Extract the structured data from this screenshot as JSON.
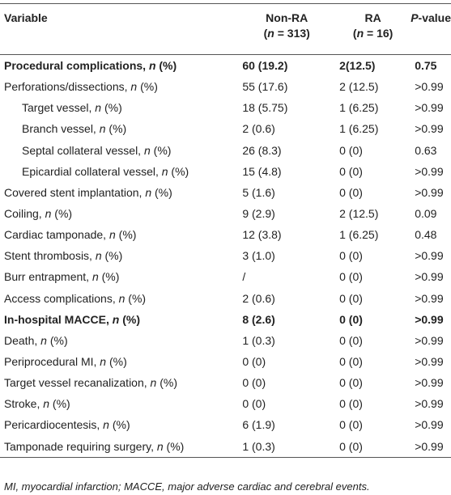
{
  "header": {
    "variable": "Variable",
    "non_ra": {
      "name": "Non-RA",
      "n": "(n = 313)"
    },
    "ra": {
      "name": "RA",
      "n": "(n = 16)"
    },
    "p_value": "P-value"
  },
  "rows": [
    {
      "label": "Procedural complications, n (%)",
      "non_ra": "60 (19.2)",
      "ra": "2(12.5)",
      "p": "0.75",
      "bold": true
    },
    {
      "label": "Perforations/dissections, n (%)",
      "non_ra": "55 (17.6)",
      "ra": "2 (12.5)",
      "p": ">0.99"
    },
    {
      "label": "Target vessel, n (%)",
      "non_ra": "18 (5.75)",
      "ra": "1 (6.25)",
      "p": ">0.99",
      "indent": true
    },
    {
      "label": "Branch vessel, n (%)",
      "non_ra": "2 (0.6)",
      "ra": "1 (6.25)",
      "p": ">0.99",
      "indent": true
    },
    {
      "label": "Septal collateral vessel, n (%)",
      "non_ra": "26 (8.3)",
      "ra": "0 (0)",
      "p": "0.63",
      "indent": true
    },
    {
      "label": "Epicardial collateral vessel, n (%)",
      "non_ra": "15 (4.8)",
      "ra": "0 (0)",
      "p": ">0.99",
      "indent": true
    },
    {
      "label": "Covered stent implantation, n (%)",
      "non_ra": "5 (1.6)",
      "ra": "0 (0)",
      "p": ">0.99"
    },
    {
      "label": "Coiling, n (%)",
      "non_ra": "9 (2.9)",
      "ra": "2 (12.5)",
      "p": "0.09"
    },
    {
      "label": "Cardiac tamponade, n (%)",
      "non_ra": "12 (3.8)",
      "ra": "1 (6.25)",
      "p": "0.48"
    },
    {
      "label": "Stent thrombosis, n (%)",
      "non_ra": "3 (1.0)",
      "ra": "0 (0)",
      "p": ">0.99"
    },
    {
      "label": "Burr entrapment, n (%)",
      "non_ra": "/",
      "ra": "0 (0)",
      "p": ">0.99"
    },
    {
      "label": "Access complications, n (%)",
      "non_ra": "2 (0.6)",
      "ra": "0 (0)",
      "p": ">0.99"
    },
    {
      "label": "In-hospital MACCE, n (%)",
      "non_ra": "8 (2.6)",
      "ra": "0 (0)",
      "p": ">0.99",
      "bold": true
    },
    {
      "label": "Death, n (%)",
      "non_ra": "1 (0.3)",
      "ra": "0 (0)",
      "p": ">0.99"
    },
    {
      "label": "Periprocedural MI, n (%)",
      "non_ra": "0 (0)",
      "ra": "0 (0)",
      "p": ">0.99"
    },
    {
      "label": "Target vessel recanalization, n (%)",
      "non_ra": "0 (0)",
      "ra": "0 (0)",
      "p": ">0.99"
    },
    {
      "label": "Stroke, n (%)",
      "non_ra": "0 (0)",
      "ra": "0 (0)",
      "p": ">0.99"
    },
    {
      "label": "Pericardiocentesis, n (%)",
      "non_ra": "6 (1.9)",
      "ra": "0 (0)",
      "p": ">0.99"
    },
    {
      "label": "Tamponade requiring surgery, n (%)",
      "non_ra": "1 (0.3)",
      "ra": "0 (0)",
      "p": ">0.99"
    }
  ],
  "footnote": "MI, myocardial infarction; MACCE, major adverse cardiac and cerebral events."
}
